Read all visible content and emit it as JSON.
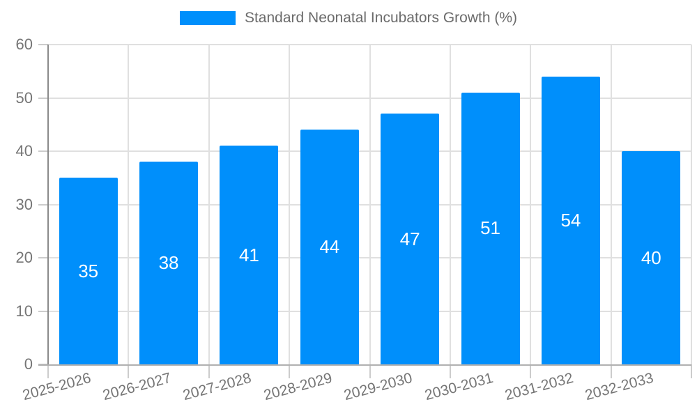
{
  "legend": {
    "label": "Standard Neonatal Incubators Growth (%)"
  },
  "chart_data": {
    "type": "bar",
    "title": "Standard Neonatal Incubators Growth (%)",
    "categories": [
      "2025-2026",
      "2026-2027",
      "2027-2028",
      "2028-2029",
      "2029-2030",
      "2030-2031",
      "2031-2032",
      "2032-2033"
    ],
    "values": [
      35,
      38,
      41,
      44,
      47,
      51,
      54,
      40
    ],
    "xlabel": "",
    "ylabel": "",
    "ylim": [
      0,
      60
    ],
    "yticks": [
      0,
      10,
      20,
      30,
      40,
      50,
      60
    ],
    "grid": true,
    "legend_position": "top",
    "value_labels": "inside-center",
    "colors": {
      "bar": "#008FFB",
      "grid": "#e0e0e0",
      "y_axis_line": "#8a8a8a",
      "x_axis_line": "#b0b0b0",
      "tick": "#cccccc",
      "axis_text": "#757575",
      "legend_text": "#6b6b6b",
      "value_label": "#ffffff",
      "background": "#ffffff"
    }
  }
}
